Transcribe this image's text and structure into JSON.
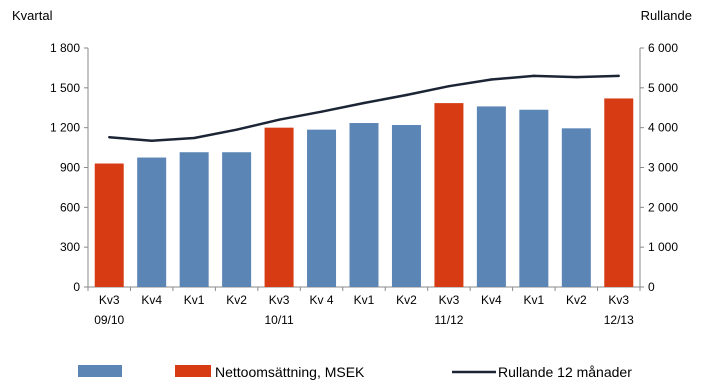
{
  "chart_data": {
    "type": "bar",
    "y_left_label": "Kvartal",
    "y_right_label": "Rullande",
    "y_left_range": [
      0,
      1800
    ],
    "y_left_ticks": [
      "0",
      "300",
      "600",
      "900",
      "1 200",
      "1 500",
      "1 800"
    ],
    "y_right_range": [
      0,
      6000
    ],
    "y_right_ticks": [
      "0",
      "1 000",
      "2 000",
      "3 000",
      "4 000",
      "5 000",
      "6 000"
    ],
    "categories": [
      {
        "line1": "Kv3",
        "line2": "09/10"
      },
      {
        "line1": "Kv4",
        "line2": ""
      },
      {
        "line1": "Kv1",
        "line2": ""
      },
      {
        "line1": "Kv2",
        "line2": ""
      },
      {
        "line1": "Kv3",
        "line2": "10/11"
      },
      {
        "line1": "Kv 4",
        "line2": ""
      },
      {
        "line1": "Kv1",
        "line2": ""
      },
      {
        "line1": "Kv2",
        "line2": ""
      },
      {
        "line1": "Kv3",
        "line2": "11/12"
      },
      {
        "line1": "Kv4",
        "line2": ""
      },
      {
        "line1": "Kv1",
        "line2": ""
      },
      {
        "line1": "Kv2",
        "line2": ""
      },
      {
        "line1": "Kv3",
        "line2": "12/13"
      }
    ],
    "bars": {
      "values": [
        930,
        975,
        1015,
        1015,
        1200,
        1185,
        1235,
        1220,
        1385,
        1360,
        1335,
        1195,
        1420
      ],
      "highlight_indices": [
        0,
        4,
        8,
        12
      ],
      "colors": {
        "normal": "#5b85b5",
        "highlight": "#d63b14"
      }
    },
    "line": {
      "name": "Rullande 12 månader",
      "axis": "right",
      "values": [
        3760,
        3670,
        3740,
        3950,
        4200,
        4400,
        4620,
        4820,
        5040,
        5210,
        5300,
        5270,
        5300
      ],
      "color": "#1c2535"
    },
    "legend": {
      "position": "bottom",
      "items": [
        {
          "label": "",
          "kind": "bar",
          "color": "#5b85b5"
        },
        {
          "label": "Nettoomsättning, MSEK",
          "kind": "bar",
          "color": "#d63b14"
        },
        {
          "label": "Rullande 12 månader",
          "kind": "line",
          "color": "#1c2535"
        }
      ]
    },
    "grid": false
  }
}
